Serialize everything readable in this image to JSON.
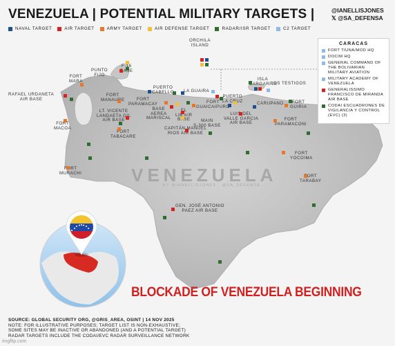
{
  "header": {
    "title": "VENEZUELA | POTENTIAL MILITARY TARGETS |",
    "handle_1": "@IANELLISJONES",
    "handle_2": "𝕏 @SA_DEFENSA"
  },
  "legend": [
    {
      "label": "NAVAL TARGET",
      "color": "#1f4f8c"
    },
    {
      "label": "AIR TARGET",
      "color": "#d6231e"
    },
    {
      "label": "ARMY TARGET",
      "color": "#e9772a"
    },
    {
      "label": "AIR DEFENSE TARGET",
      "color": "#f1bf3b"
    },
    {
      "label": "RADAR/ISR TARGET",
      "color": "#2f6d33"
    },
    {
      "label": "C2 TARGET",
      "color": "#8fb9e6"
    }
  ],
  "caracas": {
    "title": "CARACAS",
    "items": [
      {
        "text": "FORT TIUNA/MOD HQ",
        "color": "#8fb9e6"
      },
      {
        "text": "DOCIM HQ",
        "color": "#8fb9e6"
      },
      {
        "text": "GENERAL COMMAND OF THE BOLIVARIAN MILITARY AVIATION",
        "color": "#8fb9e6"
      },
      {
        "text": "MILITARY ACADEMY OF VENEZUELA",
        "color": "#8fb9e6"
      },
      {
        "text": "GENERALISSIMO FRANCISCO DE MIRANDA AIR BASE",
        "color": "#d6231e"
      },
      {
        "text": "CODAI ESCUADRONES DE VIGILANCIA Y CONTROL (EVC) (3)",
        "color": "#2f6d33"
      }
    ]
  },
  "map_labels": [
    {
      "id": "orchila",
      "text": "ORCHILA\nISLAND"
    },
    {
      "id": "punto-fijo",
      "text": "PUNTO\nFIJO"
    },
    {
      "id": "f16",
      "text": "F-16\nBASE"
    },
    {
      "id": "fort-mara",
      "text": "FORT\nMARA"
    },
    {
      "id": "urdaneta",
      "text": "RAFAEL URDANETA\nAIR BASE"
    },
    {
      "id": "manaure",
      "text": "FORT\nMANAURE"
    },
    {
      "id": "puerto-cabello",
      "text": "PUERTO\nCABELLO"
    },
    {
      "id": "la-guaira",
      "text": "LA GUAIRA"
    },
    {
      "id": "isla-margarita",
      "text": "ISLA\nMARGARITA"
    },
    {
      "id": "los-testigos",
      "text": "LOS TESTIGOS"
    },
    {
      "id": "paramacay",
      "text": "FORT\nPARAMACAY"
    },
    {
      "id": "guaicaipuro",
      "text": "FORT\nGUAICAIPURO"
    },
    {
      "id": "puerto-la-cruz",
      "text": "PUERTO\nLA CRUZ"
    },
    {
      "id": "carupano",
      "text": "CARUPANO"
    },
    {
      "id": "guiria",
      "text": "FORT\nGUIRIA"
    },
    {
      "id": "vicente-landaeta",
      "text": "LT. VICENTE\nLANDAETA GIL\nAIR BASE"
    },
    {
      "id": "sucre",
      "text": "BASE\nAEREA\nMARISCAL"
    },
    {
      "id": "el-libertador",
      "text": "EL\nLIB AIR\nBASE"
    },
    {
      "id": "luis-del-valle",
      "text": "LUIS DEL\nVALLE GARCIA\nAIR BASE"
    },
    {
      "id": "paramaconi",
      "text": "FORT\nPARAMACONI"
    },
    {
      "id": "fort-macoa",
      "text": "FORT\nMACOA"
    },
    {
      "id": "tabacare",
      "text": "FORT\nTABACARE"
    },
    {
      "id": "main-300",
      "text": "MAIN\nS-300 BASE"
    },
    {
      "id": "capitan-manuel",
      "text": "CAPITÁN MANUEL\nRIOS AIR BASE"
    },
    {
      "id": "yocoima",
      "text": "FORT\nYOCOIMA"
    },
    {
      "id": "tarabay",
      "text": "FORT\nTARABAY"
    },
    {
      "id": "murachi",
      "text": "FORT\nMURACHI"
    },
    {
      "id": "jose-antonio-paez",
      "text": "GEN. JOSÉ ANTONIO\nPAEZ AIR BASE"
    }
  ],
  "watermark": {
    "country": "VENEZUELA",
    "credit": "BY @IANELLISJONES · @SA_DEFENSA"
  },
  "banner": "BLOCKADE OF VENEZUELA BEGINNING",
  "footer": {
    "source": "SOURCE: GLOBAL SECURITY ORG, @GRIS_AREA, OSINT | 14 NOV 2025",
    "note_1": "NOTE: FOR ILLUSTRATIVE PURPOSES; TARGET LIST IS NON-EXHAUSTIVE;",
    "note_2": "SOME SITES MAY BE INACTIVE OR ABANDONED (AND A POTENTIAL TARGET)",
    "note_3": "RADAR TARGETS INCLUDE THE CODAI/EVC RADAR SURVEILLANCE NETWORK",
    "imgflip": "imgflip.com"
  },
  "colors": {
    "naval": "#1f4f8c",
    "air": "#d6231e",
    "army": "#e9772a",
    "air_defense": "#f1bf3b",
    "radar": "#2f6d33",
    "c2": "#8fb9e6",
    "banner": "#d0201f",
    "land": "#c9c9c9"
  }
}
